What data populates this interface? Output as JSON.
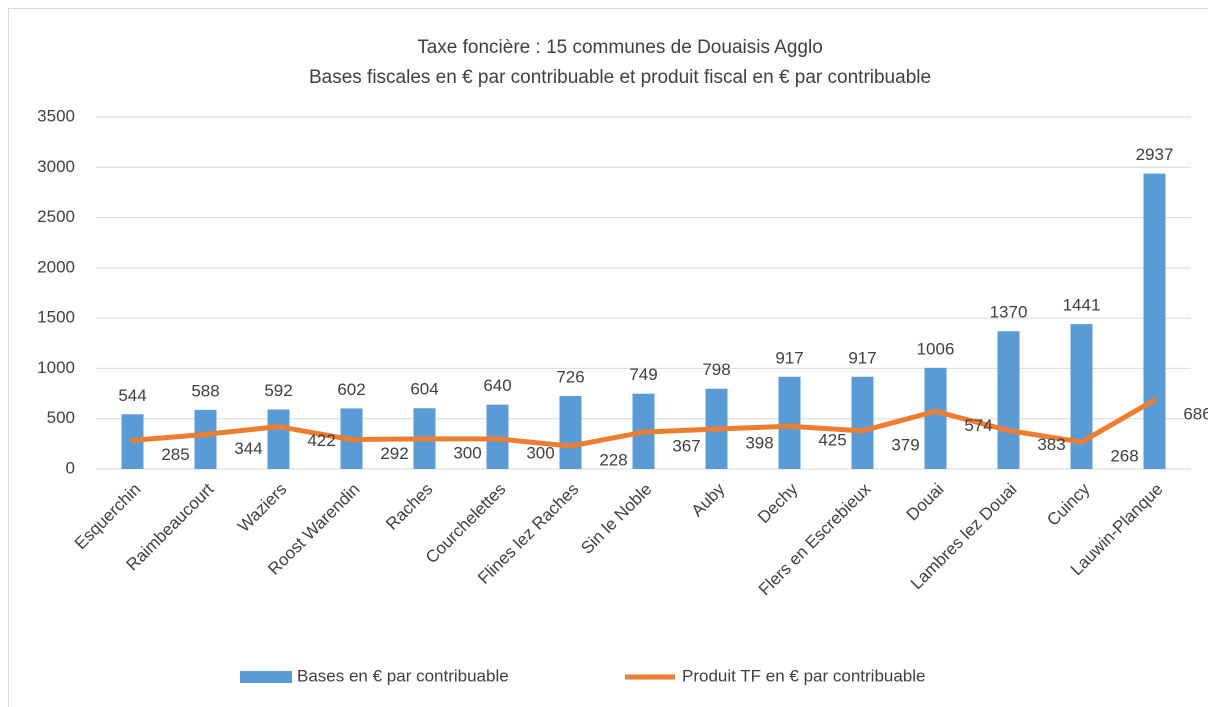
{
  "chart_data": {
    "type": "bar_line",
    "title": "Taxe foncière : 15 communes de Douaisis Agglo",
    "subtitle": "Bases fiscales en € par contribuable et produit fiscal en € par contribuable",
    "categories": [
      "Esquerchin",
      "Raimbeaucourt",
      "Waziers",
      "Roost Warendin",
      "Raches",
      "Courchelettes",
      "Flines lez Raches",
      "Sin le Noble",
      "Auby",
      "Dechy",
      "Flers en Escrebieux",
      "Douai",
      "Lambres lez Douai",
      "Cuincy",
      "Lauwin-Planque"
    ],
    "series": [
      {
        "name": "Bases en € par contribuable",
        "type": "bar",
        "color": "#5b9bd5",
        "values": [
          544,
          588,
          592,
          602,
          604,
          640,
          726,
          749,
          798,
          917,
          917,
          1006,
          1370,
          1441,
          2937
        ]
      },
      {
        "name": "Produit TF en € par contribuable",
        "type": "line",
        "color": "#ed7d31",
        "values": [
          285,
          344,
          422,
          292,
          300,
          300,
          228,
          367,
          398,
          425,
          379,
          574,
          383,
          268,
          686
        ]
      }
    ],
    "ylim": [
      0,
      3500
    ],
    "yticks": [
      0,
      500,
      1000,
      1500,
      2000,
      2500,
      3000,
      3500
    ],
    "grid": true,
    "legend": "bottom"
  }
}
